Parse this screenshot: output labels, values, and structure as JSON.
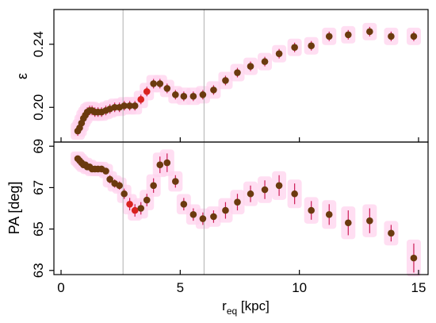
{
  "chart_data": [
    {
      "type": "scatter",
      "panel": "top",
      "ylabel": "ε",
      "ylim": [
        0.178,
        0.262
      ],
      "yticks": [
        "0.20",
        "0.24"
      ],
      "ytick_values": [
        0.2,
        0.24
      ],
      "grid": false,
      "colors": {
        "points": "#6b3a0e",
        "highlight": "#d9221f",
        "errorbars": "#cc1c56",
        "shading": "#ffd3ee",
        "reference_lines": "#b0b0b0"
      },
      "points": [
        {
          "x": 0.7,
          "y": 0.185,
          "err": 0.003
        },
        {
          "x": 0.78,
          "y": 0.187,
          "err": 0.003
        },
        {
          "x": 0.86,
          "y": 0.19,
          "err": 0.003
        },
        {
          "x": 0.94,
          "y": 0.193,
          "err": 0.003
        },
        {
          "x": 1.02,
          "y": 0.195,
          "err": 0.003
        },
        {
          "x": 1.1,
          "y": 0.197,
          "err": 0.003
        },
        {
          "x": 1.2,
          "y": 0.198,
          "err": 0.003
        },
        {
          "x": 1.3,
          "y": 0.198,
          "err": 0.003
        },
        {
          "x": 1.42,
          "y": 0.197,
          "err": 0.003
        },
        {
          "x": 1.55,
          "y": 0.197,
          "err": 0.003
        },
        {
          "x": 1.7,
          "y": 0.197,
          "err": 0.003
        },
        {
          "x": 1.88,
          "y": 0.198,
          "err": 0.003
        },
        {
          "x": 2.05,
          "y": 0.199,
          "err": 0.003
        },
        {
          "x": 2.25,
          "y": 0.2,
          "err": 0.003
        },
        {
          "x": 2.45,
          "y": 0.2,
          "err": 0.003
        },
        {
          "x": 2.65,
          "y": 0.201,
          "err": 0.003
        },
        {
          "x": 2.88,
          "y": 0.201,
          "err": 0.003
        },
        {
          "x": 3.1,
          "y": 0.201,
          "err": 0.003
        },
        {
          "x": 3.35,
          "y": 0.205,
          "err": 0.003
        },
        {
          "x": 3.6,
          "y": 0.21,
          "err": 0.003
        },
        {
          "x": 3.88,
          "y": 0.215,
          "err": 0.003
        },
        {
          "x": 4.15,
          "y": 0.215,
          "err": 0.003
        },
        {
          "x": 4.45,
          "y": 0.212,
          "err": 0.003
        },
        {
          "x": 4.8,
          "y": 0.208,
          "err": 0.003
        },
        {
          "x": 5.15,
          "y": 0.207,
          "err": 0.003
        },
        {
          "x": 5.55,
          "y": 0.207,
          "err": 0.003
        },
        {
          "x": 5.95,
          "y": 0.208,
          "err": 0.003
        },
        {
          "x": 6.4,
          "y": 0.211,
          "err": 0.003
        },
        {
          "x": 6.9,
          "y": 0.217,
          "err": 0.003
        },
        {
          "x": 7.4,
          "y": 0.222,
          "err": 0.003
        },
        {
          "x": 7.95,
          "y": 0.226,
          "err": 0.003
        },
        {
          "x": 8.55,
          "y": 0.229,
          "err": 0.003
        },
        {
          "x": 9.15,
          "y": 0.234,
          "err": 0.003
        },
        {
          "x": 9.8,
          "y": 0.238,
          "err": 0.003
        },
        {
          "x": 10.5,
          "y": 0.239,
          "err": 0.003
        },
        {
          "x": 11.25,
          "y": 0.245,
          "err": 0.003
        },
        {
          "x": 12.05,
          "y": 0.246,
          "err": 0.003
        },
        {
          "x": 12.95,
          "y": 0.248,
          "err": 0.003
        },
        {
          "x": 13.85,
          "y": 0.245,
          "err": 0.003
        },
        {
          "x": 14.8,
          "y": 0.245,
          "err": 0.003
        }
      ],
      "highlight_x": [
        3.35,
        3.6
      ],
      "reference_x": [
        2.6,
        6.0
      ]
    },
    {
      "type": "scatter",
      "panel": "bottom",
      "ylabel": "PA [deg]",
      "xlabel_main": "r",
      "xlabel_sub": "eq",
      "xlabel_unit": " [kpc]",
      "ylim": [
        62.8,
        69.2
      ],
      "yticks": [
        "63",
        "65",
        "67",
        "69"
      ],
      "ytick_values": [
        63,
        65,
        67,
        69
      ],
      "xlim": [
        -0.3,
        15.4
      ],
      "xticks": [
        "0",
        "5",
        "10",
        "15"
      ],
      "xtick_values": [
        0,
        5,
        10,
        15
      ],
      "points": [
        {
          "x": 0.7,
          "y": 68.4,
          "err": 0.15
        },
        {
          "x": 0.78,
          "y": 68.3,
          "err": 0.15
        },
        {
          "x": 0.86,
          "y": 68.2,
          "err": 0.15
        },
        {
          "x": 0.94,
          "y": 68.1,
          "err": 0.15
        },
        {
          "x": 1.02,
          "y": 68.1,
          "err": 0.15
        },
        {
          "x": 1.1,
          "y": 68.0,
          "err": 0.15
        },
        {
          "x": 1.2,
          "y": 68.0,
          "err": 0.15
        },
        {
          "x": 1.3,
          "y": 67.9,
          "err": 0.15
        },
        {
          "x": 1.42,
          "y": 67.9,
          "err": 0.15
        },
        {
          "x": 1.55,
          "y": 67.9,
          "err": 0.15
        },
        {
          "x": 1.7,
          "y": 67.9,
          "err": 0.15
        },
        {
          "x": 1.88,
          "y": 67.8,
          "err": 0.15
        },
        {
          "x": 2.05,
          "y": 67.4,
          "err": 0.2
        },
        {
          "x": 2.25,
          "y": 67.2,
          "err": 0.2
        },
        {
          "x": 2.45,
          "y": 67.1,
          "err": 0.2
        },
        {
          "x": 2.65,
          "y": 66.7,
          "err": 0.25
        },
        {
          "x": 2.88,
          "y": 66.2,
          "err": 0.3
        },
        {
          "x": 3.1,
          "y": 65.9,
          "err": 0.3
        },
        {
          "x": 3.35,
          "y": 66.0,
          "err": 0.3
        },
        {
          "x": 3.6,
          "y": 66.4,
          "err": 0.3
        },
        {
          "x": 3.88,
          "y": 67.1,
          "err": 0.35
        },
        {
          "x": 4.15,
          "y": 68.1,
          "err": 0.4
        },
        {
          "x": 4.45,
          "y": 68.2,
          "err": 0.45
        },
        {
          "x": 4.8,
          "y": 67.3,
          "err": 0.3
        },
        {
          "x": 5.15,
          "y": 66.2,
          "err": 0.3
        },
        {
          "x": 5.55,
          "y": 65.7,
          "err": 0.3
        },
        {
          "x": 5.95,
          "y": 65.5,
          "err": 0.3
        },
        {
          "x": 6.4,
          "y": 65.6,
          "err": 0.3
        },
        {
          "x": 6.9,
          "y": 65.9,
          "err": 0.4
        },
        {
          "x": 7.4,
          "y": 66.3,
          "err": 0.4
        },
        {
          "x": 7.95,
          "y": 66.7,
          "err": 0.4
        },
        {
          "x": 8.55,
          "y": 66.9,
          "err": 0.45
        },
        {
          "x": 9.15,
          "y": 67.1,
          "err": 0.5
        },
        {
          "x": 9.8,
          "y": 66.7,
          "err": 0.5
        },
        {
          "x": 10.5,
          "y": 65.9,
          "err": 0.45
        },
        {
          "x": 11.25,
          "y": 65.7,
          "err": 0.5
        },
        {
          "x": 12.05,
          "y": 65.3,
          "err": 0.6
        },
        {
          "x": 12.95,
          "y": 65.4,
          "err": 0.6
        },
        {
          "x": 13.85,
          "y": 64.8,
          "err": 0.4
        },
        {
          "x": 14.8,
          "y": 63.6,
          "err": 0.7
        }
      ],
      "highlight_x": [
        2.88,
        3.1
      ],
      "reference_x": [
        2.6,
        6.0
      ]
    }
  ]
}
